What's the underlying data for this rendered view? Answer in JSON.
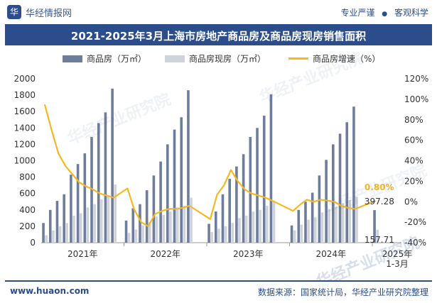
{
  "header": {
    "logo_mark": "华",
    "logo_text": "华经情报网",
    "slogan_1": "专业严谨",
    "slogan_sep": "●",
    "slogan_2": "客观科学"
  },
  "footer": {
    "site": "www.huaon.com",
    "source": "数据来源：国家统计局，华经产业研究院整理"
  },
  "watermarks": [
    "华经产业研究院",
    "华经产业研究院",
    "华经产业研究院",
    "华经产业研究院"
  ],
  "colors": {
    "bar_forward": "#6e7d9c",
    "bar_spot": "#cfd3dc",
    "line_growth": "#f5b825",
    "title_bg": "#2b4d8c"
  },
  "chart_data": {
    "type": "bar",
    "title": "2021-2025年3月上海市房地产商品房及商品房现房销售面积",
    "y_left": {
      "ylim": [
        0,
        2000
      ],
      "ticks": [
        "0",
        "200",
        "400",
        "600",
        "800",
        "1000",
        "1200",
        "1400",
        "1600",
        "1800",
        "2000"
      ]
    },
    "y_right": {
      "ylim": [
        -40,
        120
      ],
      "ticks": [
        "-40%",
        "-20%",
        "0%",
        "20%",
        "40%",
        "60%",
        "80%",
        "100%",
        "120%"
      ]
    },
    "x_group_labels": [
      "2021年",
      "2022年",
      "2023年",
      "2024年",
      "2025年\n1-3月"
    ],
    "series": [
      {
        "name": "商品房（万㎡）",
        "kind": "bar",
        "values": [
          [
            240,
            400,
            510,
            590,
            830,
            960,
            1090,
            1290,
            1460,
            1590,
            1880
          ],
          [
            270,
            420,
            470,
            640,
            820,
            990,
            1200,
            1380,
            1530,
            1860
          ],
          [
            230,
            380,
            590,
            780,
            930,
            1080,
            1290,
            1400,
            1550,
            1810
          ],
          [
            210,
            400,
            500,
            610,
            820,
            1010,
            1200,
            1330,
            1470,
            1660
          ],
          [
            397.28
          ]
        ]
      },
      {
        "name": "商品房现房（万㎡）",
        "kind": "bar",
        "values": [
          [
            90,
            150,
            200,
            240,
            330,
            360,
            430,
            470,
            530,
            580,
            710
          ],
          [
            120,
            160,
            210,
            250,
            320,
            340,
            380,
            430,
            450,
            550
          ],
          [
            130,
            170,
            200,
            240,
            300,
            330,
            380,
            400,
            450,
            510
          ],
          [
            150,
            220,
            280,
            310,
            370,
            410,
            440,
            480,
            520,
            560
          ],
          [
            157.71
          ]
        ]
      },
      {
        "name": "商品房增速（%）",
        "kind": "line",
        "values": [
          [
            95,
            70,
            47,
            35,
            27,
            19,
            15,
            12,
            8,
            6,
            4
          ],
          [
            13,
            -8,
            -20,
            -24,
            -12,
            -9,
            -7,
            -7,
            -6,
            -4
          ],
          [
            -17,
            7,
            16,
            31,
            20,
            12,
            8,
            6,
            4,
            1
          ],
          [
            -9,
            -3,
            2,
            0,
            2,
            1,
            0,
            -4,
            -6,
            -7
          ],
          [
            0.8
          ]
        ]
      }
    ],
    "data_labels": {
      "last_bar": "397.28",
      "last_spot": "157.71",
      "last_growth": "0.80%"
    }
  }
}
